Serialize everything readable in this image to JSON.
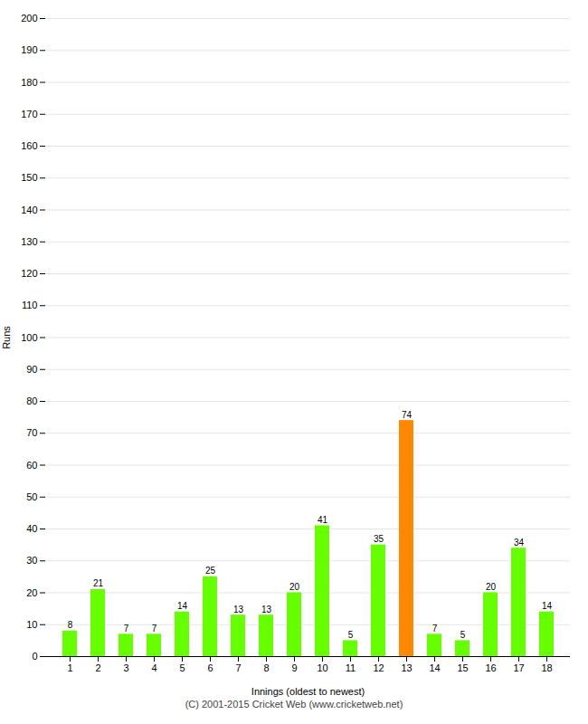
{
  "chart_data": {
    "type": "bar",
    "categories": [
      "1",
      "2",
      "3",
      "4",
      "5",
      "6",
      "7",
      "8",
      "9",
      "10",
      "11",
      "12",
      "13",
      "14",
      "15",
      "16",
      "17",
      "18"
    ],
    "values": [
      8,
      21,
      7,
      7,
      14,
      25,
      13,
      13,
      20,
      41,
      5,
      35,
      74,
      7,
      5,
      20,
      34,
      14
    ],
    "colors": [
      "#66ff00",
      "#66ff00",
      "#66ff00",
      "#66ff00",
      "#66ff00",
      "#66ff00",
      "#66ff00",
      "#66ff00",
      "#66ff00",
      "#66ff00",
      "#66ff00",
      "#66ff00",
      "#ff8800",
      "#66ff00",
      "#66ff00",
      "#66ff00",
      "#66ff00",
      "#66ff00"
    ],
    "xlabel": "Innings (oldest to newest)",
    "ylabel": "Runs",
    "ylim": [
      0,
      200
    ],
    "yticks": [
      0,
      10,
      20,
      30,
      40,
      50,
      60,
      70,
      80,
      90,
      100,
      110,
      120,
      130,
      140,
      150,
      160,
      170,
      180,
      190,
      200
    ],
    "grid": true,
    "data_labels": true,
    "caption": "(C) 2001-2015 Cricket Web (www.cricketweb.net)"
  }
}
